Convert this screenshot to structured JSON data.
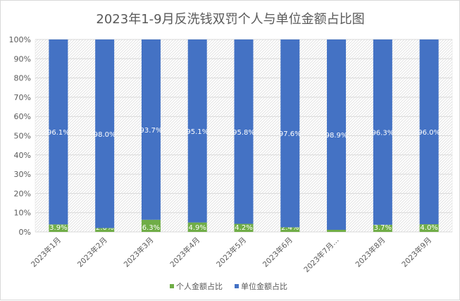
{
  "chart_data": {
    "type": "bar",
    "stacked": true,
    "percent_stacked": true,
    "title": "2023年1-9月反洗钱双罚个人与单位金额占比图",
    "categories": [
      "2023年1月",
      "2023年2月",
      "2023年3月",
      "2023年4月",
      "2023年5月",
      "2023年6月",
      "2023年7月…",
      "2023年8月",
      "2023年9月"
    ],
    "series": [
      {
        "name": "个人金额占比",
        "color": "#70ad47",
        "values": [
          3.9,
          2.0,
          6.3,
          4.9,
          4.2,
          2.4,
          1.1,
          3.7,
          4.0
        ],
        "labels": [
          "3.9%",
          "2.0%",
          "6.3%",
          "4.9%",
          "4.2%",
          "2.4%",
          "1.1%",
          "3.7%",
          "4.0%"
        ]
      },
      {
        "name": "单位金额占比",
        "color": "#4472c4",
        "values": [
          96.1,
          98.0,
          93.7,
          95.1,
          95.8,
          97.6,
          98.9,
          96.3,
          96.0
        ],
        "labels": [
          "96.1%",
          "98.0%",
          "93.7%",
          "95.1%",
          "95.8%",
          "97.6%",
          "98.9%",
          "96.3%",
          "96.0%"
        ]
      }
    ],
    "ylim": [
      0,
      100
    ],
    "yticks": [
      "0%",
      "10%",
      "20%",
      "30%",
      "40%",
      "50%",
      "60%",
      "70%",
      "80%",
      "90%",
      "100%"
    ],
    "grid": true,
    "legend": "bottom"
  }
}
